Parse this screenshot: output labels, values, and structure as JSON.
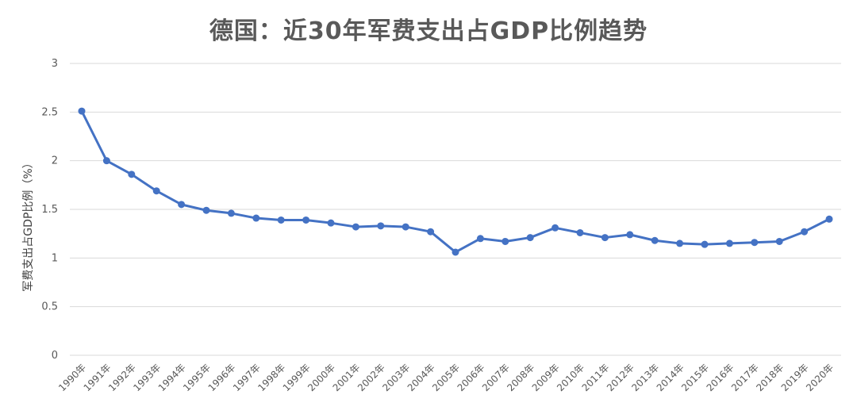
{
  "chart_data": {
    "type": "line",
    "title": "德国：近30年军费支出占GDP比例趋势",
    "xlabel": "",
    "ylabel": "军费支出占GDP比例（%）",
    "ylim": [
      0,
      3
    ],
    "yticks": [
      0,
      0.5,
      1,
      1.5,
      2,
      2.5,
      3
    ],
    "grid": true,
    "categories": [
      "1990年",
      "1991年",
      "1992年",
      "1993年",
      "1994年",
      "1995年",
      "1996年",
      "1997年",
      "1998年",
      "1999年",
      "2000年",
      "2001年",
      "2002年",
      "2003年",
      "2004年",
      "2005年",
      "2006年",
      "2007年",
      "2008年",
      "2009年",
      "2010年",
      "2011年",
      "2012年",
      "2013年",
      "2014年",
      "2015年",
      "2016年",
      "2017年",
      "2018年",
      "2019年",
      "2020年"
    ],
    "series": [
      {
        "color": "#4472C4",
        "values": [
          2.51,
          2.0,
          1.86,
          1.69,
          1.55,
          1.49,
          1.46,
          1.41,
          1.39,
          1.39,
          1.36,
          1.32,
          1.33,
          1.32,
          1.27,
          1.06,
          1.2,
          1.17,
          1.21,
          1.31,
          1.26,
          1.21,
          1.24,
          1.18,
          1.15,
          1.14,
          1.15,
          1.16,
          1.17,
          1.27,
          1.4
        ]
      }
    ]
  }
}
